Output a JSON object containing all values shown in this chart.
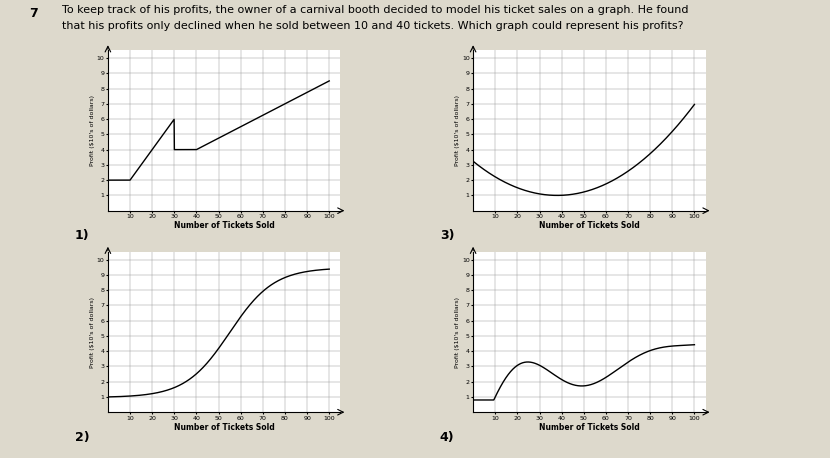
{
  "question_number": "7",
  "question_line1": "To keep track of his profits, the owner of a carnival booth decided to model his ticket sales on a graph. He found",
  "question_line2": "that his profits only declined when he sold between 10 and 40 tickets. Which graph could represent his profits?",
  "background_color": "#ddd9cc",
  "graph_background": "#ffffff",
  "graph_labels": [
    "1)",
    "2)",
    "3)",
    "4)"
  ],
  "xlabel": "Number of Tickets Sold",
  "ylabel": "Profit ($10's of dollars)",
  "xlim": [
    0,
    105
  ],
  "ylim": [
    0,
    10.5
  ],
  "xticks": [
    10,
    20,
    30,
    40,
    50,
    60,
    70,
    80,
    90,
    100
  ],
  "yticks": [
    1,
    2,
    3,
    4,
    5,
    6,
    7,
    8,
    9,
    10
  ],
  "text_color": "#000000",
  "line_color": "#000000",
  "grid_color": "#999999"
}
